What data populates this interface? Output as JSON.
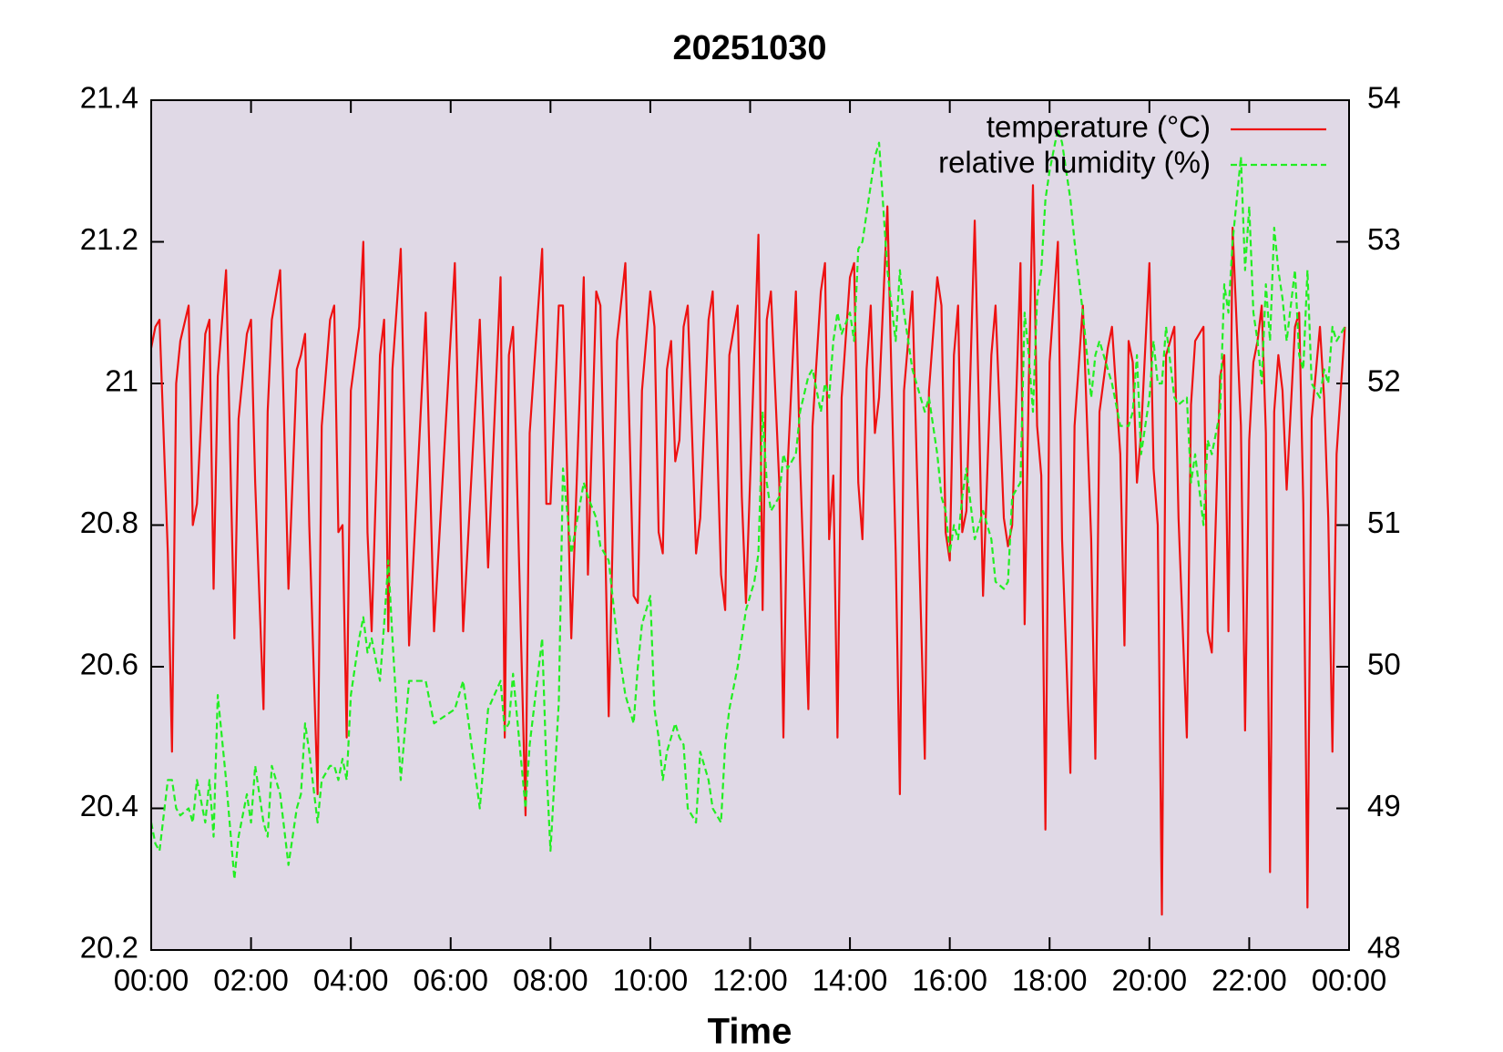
{
  "chart_data": {
    "type": "line",
    "title": "20251030",
    "x_label": "Time",
    "x": [
      "00:00",
      "00:05",
      "00:10",
      "00:20",
      "00:25",
      "00:30",
      "00:35",
      "00:45",
      "00:50",
      "00:55",
      "01:05",
      "01:10",
      "01:15",
      "01:20",
      "01:30",
      "01:40",
      "01:45",
      "01:55",
      "02:00",
      "02:05",
      "02:15",
      "02:20",
      "02:25",
      "02:35",
      "02:45",
      "02:55",
      "03:00",
      "03:05",
      "03:10",
      "03:20",
      "03:25",
      "03:35",
      "03:40",
      "03:45",
      "03:50",
      "03:55",
      "04:00",
      "04:10",
      "04:15",
      "04:20",
      "04:25",
      "04:35",
      "04:40",
      "04:45",
      "04:50",
      "05:00",
      "05:10",
      "05:30",
      "05:40",
      "06:05",
      "06:15",
      "06:35",
      "06:45",
      "07:00",
      "07:05",
      "07:10",
      "07:15",
      "07:30",
      "07:35",
      "07:50",
      "07:55",
      "08:00",
      "08:10",
      "08:15",
      "08:25",
      "08:40",
      "08:45",
      "08:55",
      "09:00",
      "09:10",
      "09:20",
      "09:30",
      "09:40",
      "09:45",
      "09:50",
      "10:00",
      "10:05",
      "10:10",
      "10:15",
      "10:20",
      "10:25",
      "10:30",
      "10:35",
      "10:40",
      "10:45",
      "10:55",
      "11:00",
      "11:10",
      "11:15",
      "11:25",
      "11:30",
      "11:35",
      "11:45",
      "11:50",
      "11:55",
      "12:05",
      "12:10",
      "12:15",
      "12:20",
      "12:25",
      "12:35",
      "12:40",
      "12:45",
      "12:55",
      "13:00",
      "13:10",
      "13:15",
      "13:25",
      "13:30",
      "13:35",
      "13:40",
      "13:45",
      "13:50",
      "14:00",
      "14:05",
      "14:10",
      "14:15",
      "14:20",
      "14:25",
      "14:30",
      "14:35",
      "14:45",
      "14:55",
      "15:00",
      "15:05",
      "15:15",
      "15:20",
      "15:30",
      "15:35",
      "15:45",
      "15:50",
      "15:55",
      "16:00",
      "16:05",
      "16:10",
      "16:15",
      "16:20",
      "16:30",
      "16:40",
      "16:50",
      "16:55",
      "17:05",
      "17:10",
      "17:15",
      "17:25",
      "17:30",
      "17:35",
      "17:40",
      "17:45",
      "17:50",
      "17:55",
      "18:00",
      "18:10",
      "18:15",
      "18:25",
      "18:30",
      "18:40",
      "18:50",
      "18:55",
      "19:00",
      "19:10",
      "19:15",
      "19:25",
      "19:30",
      "19:35",
      "19:40",
      "19:45",
      "19:50",
      "20:00",
      "20:05",
      "20:10",
      "20:15",
      "20:20",
      "20:30",
      "20:35",
      "20:45",
      "20:50",
      "20:55",
      "21:05",
      "21:10",
      "21:15",
      "21:25",
      "21:30",
      "21:35",
      "21:40",
      "21:50",
      "21:55",
      "22:00",
      "22:05",
      "22:10",
      "22:15",
      "22:20",
      "22:25",
      "22:30",
      "22:35",
      "22:40",
      "22:45",
      "22:55",
      "23:00",
      "23:05",
      "23:10",
      "23:15",
      "23:25",
      "23:30",
      "23:35",
      "23:40",
      "23:45",
      "23:55"
    ],
    "series": [
      {
        "name": "temperature (°C)",
        "color": "#ee1111",
        "line_style": "solid",
        "values": [
          21.05,
          21.08,
          21.09,
          20.76,
          20.48,
          21.0,
          21.06,
          21.11,
          20.8,
          20.83,
          21.07,
          21.09,
          20.71,
          21.01,
          21.16,
          20.64,
          20.95,
          21.07,
          21.09,
          20.86,
          20.54,
          20.96,
          21.09,
          21.16,
          20.71,
          21.02,
          21.04,
          21.07,
          20.8,
          20.42,
          20.94,
          21.09,
          21.11,
          20.79,
          20.8,
          20.5,
          20.99,
          21.08,
          21.2,
          20.79,
          20.65,
          21.04,
          21.09,
          20.65,
          21.02,
          21.19,
          20.63,
          21.1,
          20.65,
          21.17,
          20.65,
          21.09,
          20.74,
          21.15,
          20.5,
          21.04,
          21.08,
          20.39,
          20.93,
          21.19,
          20.83,
          20.83,
          21.11,
          21.11,
          20.64,
          21.15,
          20.73,
          21.13,
          21.11,
          20.53,
          21.06,
          21.17,
          20.7,
          20.69,
          20.99,
          21.13,
          21.08,
          20.79,
          20.76,
          21.02,
          21.06,
          20.89,
          20.92,
          21.08,
          21.11,
          20.76,
          20.81,
          21.09,
          21.13,
          20.73,
          20.68,
          21.04,
          21.11,
          20.84,
          20.69,
          21.04,
          21.21,
          20.68,
          21.09,
          21.13,
          20.86,
          20.5,
          20.88,
          21.13,
          20.89,
          20.54,
          20.94,
          21.13,
          21.17,
          20.78,
          20.87,
          20.5,
          20.98,
          21.15,
          21.17,
          20.86,
          20.78,
          21.02,
          21.11,
          20.93,
          20.98,
          21.25,
          20.76,
          20.42,
          20.99,
          21.13,
          20.9,
          20.47,
          20.99,
          21.15,
          21.11,
          20.79,
          20.75,
          21.04,
          21.11,
          20.79,
          20.82,
          21.23,
          20.7,
          21.04,
          21.11,
          20.81,
          20.77,
          20.8,
          21.17,
          20.66,
          21.0,
          21.28,
          20.94,
          20.87,
          20.37,
          21.03,
          21.2,
          20.78,
          20.45,
          20.94,
          21.11,
          20.78,
          20.47,
          20.96,
          21.05,
          21.08,
          20.9,
          20.63,
          21.06,
          21.03,
          20.86,
          20.93,
          21.17,
          20.88,
          20.8,
          20.25,
          21.04,
          21.08,
          20.81,
          20.5,
          20.97,
          21.06,
          21.08,
          20.65,
          20.62,
          21.01,
          21.04,
          20.65,
          21.22,
          20.94,
          20.51,
          20.92,
          21.03,
          21.06,
          21.11,
          20.93,
          20.31,
          20.96,
          21.04,
          20.99,
          20.85,
          21.08,
          21.1,
          20.83,
          20.26,
          20.95,
          21.08,
          20.98,
          20.81,
          20.48,
          20.9,
          21.08
        ]
      },
      {
        "name": "relative humidity (%)",
        "color": "#22ee22",
        "line_style": "dashed",
        "axis": "y2",
        "values": [
          48.9,
          48.75,
          48.7,
          49.2,
          49.2,
          49.0,
          48.95,
          49.0,
          48.9,
          49.2,
          48.9,
          49.2,
          48.8,
          49.8,
          49.2,
          48.5,
          48.8,
          49.1,
          48.9,
          49.3,
          48.9,
          48.8,
          49.3,
          49.1,
          48.6,
          49.0,
          49.1,
          49.6,
          49.4,
          48.9,
          49.2,
          49.3,
          49.3,
          49.2,
          49.35,
          49.2,
          49.8,
          50.2,
          50.35,
          50.1,
          50.2,
          49.9,
          50.3,
          50.75,
          50.2,
          49.2,
          49.9,
          49.9,
          49.6,
          49.7,
          49.9,
          49.0,
          49.7,
          49.9,
          49.55,
          49.6,
          49.95,
          49.0,
          49.45,
          50.2,
          49.3,
          48.7,
          49.75,
          51.4,
          50.8,
          51.3,
          51.2,
          51.05,
          50.85,
          50.75,
          50.2,
          49.8,
          49.6,
          50.0,
          50.3,
          50.5,
          49.7,
          49.5,
          49.2,
          49.4,
          49.5,
          49.6,
          49.5,
          49.45,
          49.0,
          48.9,
          49.4,
          49.2,
          49.0,
          48.9,
          49.45,
          49.7,
          50.0,
          50.2,
          50.4,
          50.6,
          50.8,
          51.8,
          51.3,
          51.1,
          51.2,
          51.5,
          51.4,
          51.5,
          51.8,
          52.05,
          52.1,
          51.8,
          52.0,
          51.9,
          52.3,
          52.5,
          52.35,
          52.5,
          52.3,
          52.95,
          53.0,
          53.2,
          53.4,
          53.6,
          53.7,
          52.8,
          52.3,
          52.8,
          52.5,
          52.1,
          52.0,
          51.8,
          51.9,
          51.5,
          51.2,
          51.1,
          50.8,
          51.0,
          50.9,
          51.2,
          51.4,
          50.9,
          51.1,
          50.9,
          50.6,
          50.55,
          50.6,
          51.2,
          51.3,
          52.5,
          52.2,
          51.8,
          52.6,
          52.8,
          53.3,
          53.5,
          53.8,
          53.7,
          53.3,
          53.0,
          52.5,
          51.9,
          52.2,
          52.3,
          52.1,
          52.0,
          51.7,
          51.7,
          51.7,
          51.8,
          52.2,
          51.5,
          51.9,
          52.3,
          52.0,
          52.0,
          52.4,
          51.9,
          51.85,
          51.9,
          51.3,
          51.5,
          51.0,
          51.6,
          51.5,
          51.8,
          52.7,
          52.5,
          53.0,
          53.6,
          52.8,
          53.25,
          52.5,
          52.3,
          52.0,
          52.7,
          52.3,
          53.1,
          52.8,
          52.6,
          52.3,
          52.8,
          52.2,
          52.1,
          52.8,
          52.0,
          51.9,
          52.1,
          52.0,
          52.4,
          52.3,
          52.4
        ]
      }
    ],
    "xlim": [
      0,
      1440
    ],
    "xticks": [
      {
        "value": 0,
        "label": "00:00"
      },
      {
        "value": 120,
        "label": "02:00"
      },
      {
        "value": 240,
        "label": "04:00"
      },
      {
        "value": 360,
        "label": "06:00"
      },
      {
        "value": 480,
        "label": "08:00"
      },
      {
        "value": 600,
        "label": "10:00"
      },
      {
        "value": 720,
        "label": "12:00"
      },
      {
        "value": 840,
        "label": "14:00"
      },
      {
        "value": 960,
        "label": "16:00"
      },
      {
        "value": 1080,
        "label": "18:00"
      },
      {
        "value": 1200,
        "label": "20:00"
      },
      {
        "value": 1320,
        "label": "22:00"
      },
      {
        "value": 1440,
        "label": "00:00"
      }
    ],
    "ylim": [
      20.2,
      21.4
    ],
    "yticks": [
      20.2,
      20.4,
      20.6,
      20.8,
      21,
      21.2,
      21.4
    ],
    "y2lim": [
      48,
      54
    ],
    "y2ticks": [
      48,
      49,
      50,
      51,
      52,
      53,
      54
    ],
    "grid": false,
    "legend": "top-right",
    "plot_background": "#e0d9e6"
  }
}
